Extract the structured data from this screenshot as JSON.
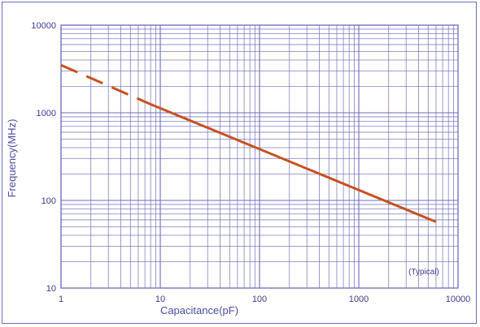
{
  "chart_data": {
    "type": "line",
    "xlabel": "Capacitance(pF)",
    "ylabel": "Frequency(MHz)",
    "x_scale": "log",
    "y_scale": "log",
    "xlim": [
      1,
      10000
    ],
    "ylim": [
      10,
      10000
    ],
    "x_ticks": [
      "1",
      "10",
      "100",
      "1000",
      "10000"
    ],
    "y_ticks": [
      "10",
      "100",
      "1000",
      "10000"
    ],
    "grid": true,
    "annotation": "(Typical)",
    "series": [
      {
        "line_style": "dashed",
        "color": "#c8501e",
        "points": [
          [
            1,
            3500
          ],
          [
            8,
            1250
          ]
        ]
      },
      {
        "line_style": "solid",
        "color": "#c8501e",
        "points": [
          [
            8,
            1250
          ],
          [
            6000,
            57
          ]
        ]
      }
    ]
  },
  "colors": {
    "grid": "#6b6bbd",
    "frame": "#6b6bbd",
    "text": "#3c3c8c",
    "series": "#c8501e"
  }
}
